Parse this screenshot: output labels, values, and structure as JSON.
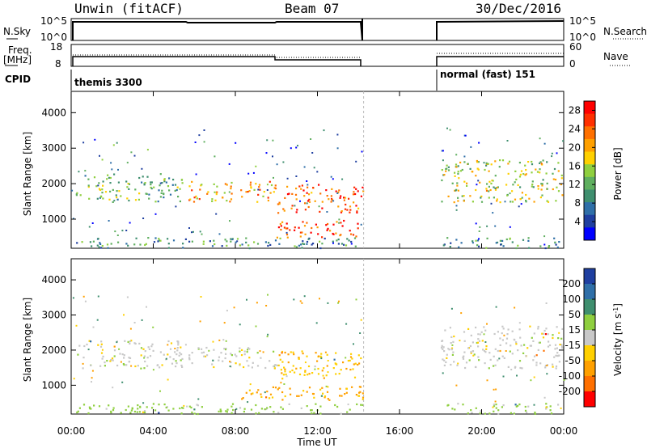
{
  "header": {
    "radar": "Unwin (fitACF)",
    "beam": "Beam 07",
    "date": "30/Dec/2016"
  },
  "panels_small": {
    "nsky_label": "N.Sky",
    "nsky_ticks": [
      "10^5",
      "10^0"
    ],
    "nsearch_label": "N.Search",
    "nsearch_ticks": [
      "10^5",
      "10^0"
    ],
    "freq_label_1": "Freq.",
    "freq_label_2": "[MHz]",
    "freq_ticks": [
      "18",
      "8"
    ],
    "nave_label": "Nave",
    "nave_ticks": [
      "60",
      "0"
    ],
    "cpid_label": "CPID",
    "cpid_1": "themis 3300",
    "cpid_2": "normal (fast) 151"
  },
  "chart_data": [
    {
      "type": "heatmap",
      "title": "",
      "xlabel": "",
      "ylabel": "Slant Range [km]",
      "x_ticks": [
        "00:00",
        "04:00",
        "08:00",
        "12:00",
        "16:00",
        "20:00",
        "00:00"
      ],
      "xlim": [
        0,
        24
      ],
      "ylim": [
        180,
        4600
      ],
      "y_ticks": [
        1000,
        2000,
        3000,
        4000
      ],
      "colorbar": {
        "label": "Power [dB]",
        "ticks": [
          4,
          8,
          12,
          16,
          20,
          24,
          28
        ],
        "range": [
          0,
          30
        ],
        "colors": [
          "#0000ff",
          "#1f3fa0",
          "#2f6fa8",
          "#3f8f6f",
          "#5faf5f",
          "#8fcf3f",
          "#ffd000",
          "#ffa000",
          "#ff7000",
          "#ff3000",
          "#ff0000"
        ]
      },
      "data_gap_hours": [
        14.25,
        18.0
      ],
      "echo_regions": [
        {
          "t0": 0.2,
          "t1": 5.4,
          "r0": 1500,
          "r1": 2300,
          "level": 12
        },
        {
          "t0": 5.7,
          "t1": 10.0,
          "r0": 1500,
          "r1": 2100,
          "level": 20
        },
        {
          "t0": 10.0,
          "t1": 14.2,
          "r0": 1200,
          "r1": 2000,
          "level": 24
        },
        {
          "t0": 10.0,
          "t1": 14.2,
          "r0": 500,
          "r1": 1000,
          "level": 26
        },
        {
          "t0": 0.2,
          "t1": 14.2,
          "r0": 200,
          "r1": 500,
          "level": 10
        },
        {
          "t0": 18.0,
          "t1": 23.9,
          "r0": 1500,
          "r1": 2700,
          "level": 16
        },
        {
          "t0": 18.0,
          "t1": 23.9,
          "r0": 200,
          "r1": 500,
          "level": 10
        }
      ]
    },
    {
      "type": "heatmap",
      "title": "",
      "xlabel": "Time UT",
      "ylabel": "Slant Range [km]",
      "x_ticks": [
        "00:00",
        "04:00",
        "08:00",
        "12:00",
        "16:00",
        "20:00",
        "00:00"
      ],
      "xlim": [
        0,
        24
      ],
      "ylim": [
        180,
        4600
      ],
      "y_ticks": [
        1000,
        2000,
        3000,
        4000
      ],
      "colorbar": {
        "label": "Velocity [m s^-1]",
        "ticks": [
          "200",
          "100",
          "50",
          "15",
          "-15",
          "-50",
          "-100",
          "-200"
        ],
        "colors": [
          "#1f3fa0",
          "#2f6fa8",
          "#3f8f6f",
          "#8fcf3f",
          "#c8c8c8",
          "#ffd000",
          "#ffa000",
          "#ff7000",
          "#ff0000"
        ]
      },
      "data_gap_hours": [
        14.25,
        18.0
      ],
      "echo_regions": [
        {
          "t0": 0.2,
          "t1": 5.4,
          "r0": 1500,
          "r1": 2300,
          "level": 0
        },
        {
          "t0": 5.7,
          "t1": 10.0,
          "r0": 1500,
          "r1": 2100,
          "level": 0
        },
        {
          "t0": 10.0,
          "t1": 14.2,
          "r0": 1200,
          "r1": 2000,
          "level": -40
        },
        {
          "t0": 8.0,
          "t1": 14.2,
          "r0": 600,
          "r1": 1000,
          "level": -60
        },
        {
          "t0": 0.2,
          "t1": 14.2,
          "r0": 200,
          "r1": 500,
          "level": 30
        },
        {
          "t0": 18.0,
          "t1": 23.9,
          "r0": 1500,
          "r1": 2700,
          "level": 0
        },
        {
          "t0": 18.0,
          "t1": 23.9,
          "r0": 200,
          "r1": 500,
          "level": 30
        }
      ]
    }
  ],
  "colorbar_vel_label": "Velocity [m s",
  "colorbar_vel_sup": "-1",
  "colorbar_vel_close": "]"
}
